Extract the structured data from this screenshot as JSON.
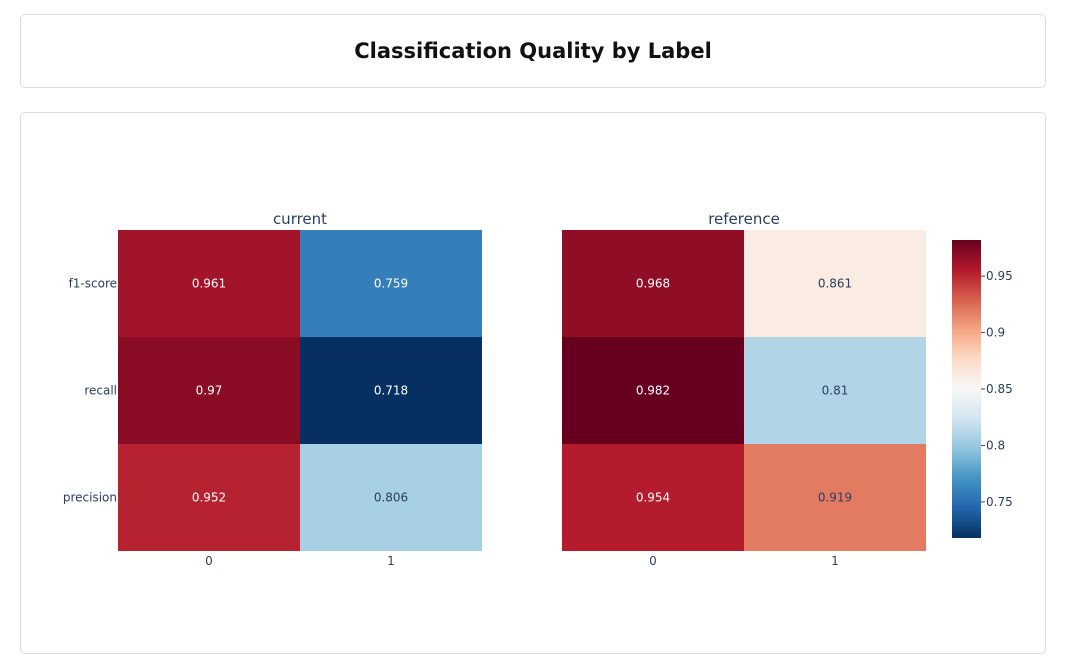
{
  "page_title": "Classification Quality by Label",
  "chart_data": {
    "type": "heatmap",
    "metrics": [
      "f1-score",
      "recall",
      "precision"
    ],
    "labels": [
      "0",
      "1"
    ],
    "colorscale": "RdBu (reversed)",
    "zmin": 0.718,
    "zmax": 0.982,
    "colorbar_ticks": [
      0.75,
      0.8,
      0.85,
      0.9,
      0.95
    ],
    "panels": [
      {
        "title": "current",
        "values": [
          [
            0.961,
            0.759
          ],
          [
            0.97,
            0.718
          ],
          [
            0.952,
            0.806
          ]
        ],
        "text": [
          [
            "0.961",
            "0.759"
          ],
          [
            "0.97",
            "0.718"
          ],
          [
            "0.952",
            "0.806"
          ]
        ]
      },
      {
        "title": "reference",
        "values": [
          [
            0.968,
            0.861
          ],
          [
            0.982,
            0.81
          ],
          [
            0.954,
            0.919
          ]
        ],
        "text": [
          [
            "0.968",
            "0.861"
          ],
          [
            "0.982",
            "0.81"
          ],
          [
            "0.954",
            "0.919"
          ]
        ]
      }
    ]
  }
}
